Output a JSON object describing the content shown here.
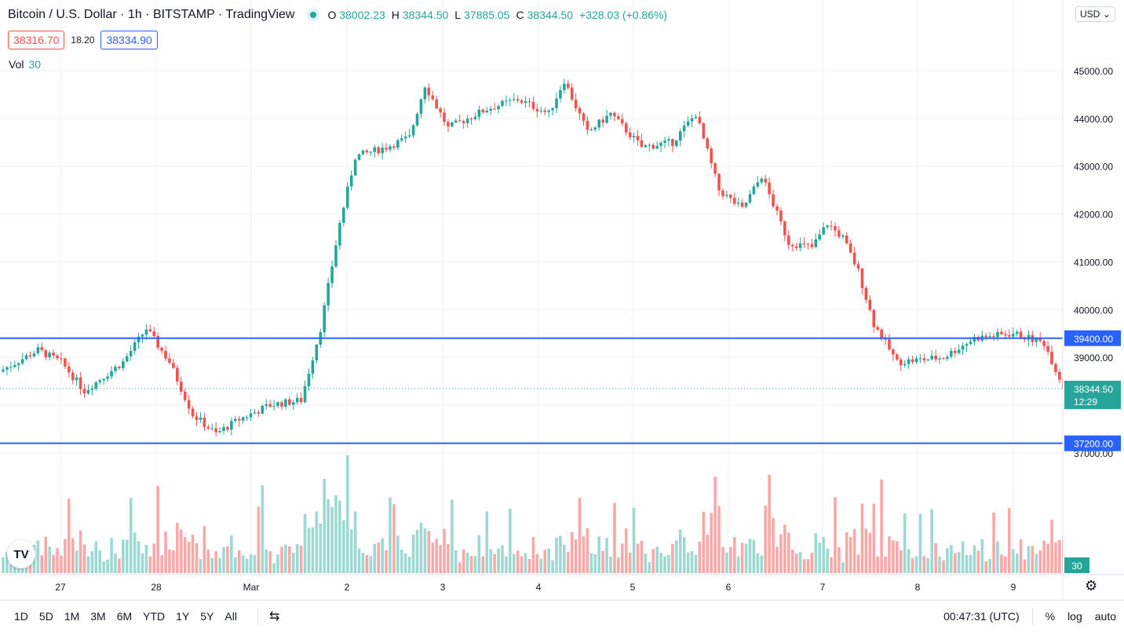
{
  "header": {
    "symbol_title": "Bitcoin / U.S. Dollar · 1h · BITSTAMP · TradingView",
    "ohlc": {
      "o_label": "O",
      "o": "38002.23",
      "h_label": "H",
      "h": "38344.50",
      "l_label": "L",
      "l": "37885.05",
      "c_label": "C",
      "c": "38344.50",
      "change": "+328.03 (+0.86%)"
    },
    "bid": "38316.70",
    "spread": "18.20",
    "ask": "38334.90",
    "vol_label": "Vol",
    "vol_value": "30",
    "currency": "USD"
  },
  "colors": {
    "up": "#26a69a",
    "down": "#ef5350",
    "up_vol": "#9ed8d2",
    "down_vol": "#f7a9a8",
    "hline": "#2962ff",
    "grid": "#f0f3fa"
  },
  "chart_data": {
    "type": "candlestick",
    "yaxis": {
      "ticks": [
        37000,
        38000,
        39000,
        40000,
        41000,
        42000,
        43000,
        44000,
        45000
      ],
      "tick_labels": [
        "37000.00",
        "38000.00",
        "39000.00",
        "40000.00",
        "41000.00",
        "42000.00",
        "43000.00",
        "44000.00",
        "45000.00"
      ]
    },
    "xaxis": {
      "tick_labels": [
        "27",
        "28",
        "Mar",
        "2",
        "3",
        "4",
        "5",
        "6",
        "7",
        "8",
        "9"
      ]
    },
    "horizontal_lines": [
      {
        "price": 39400,
        "label": "39400.00"
      },
      {
        "price": 37200,
        "label": "37200.00"
      }
    ],
    "last_price": {
      "price": 38344.5,
      "label": "38344.50",
      "countdown": "12:29"
    },
    "volume_last_label": "30",
    "anchors": [
      {
        "t": 0,
        "p": 38700
      },
      {
        "t": 10,
        "p": 39150
      },
      {
        "t": 16,
        "p": 38900
      },
      {
        "t": 22,
        "p": 38300
      },
      {
        "t": 32,
        "p": 38900
      },
      {
        "t": 38,
        "p": 39600
      },
      {
        "t": 44,
        "p": 38900
      },
      {
        "t": 50,
        "p": 37800
      },
      {
        "t": 56,
        "p": 37400
      },
      {
        "t": 62,
        "p": 37700
      },
      {
        "t": 70,
        "p": 38000
      },
      {
        "t": 78,
        "p": 38100
      },
      {
        "t": 83,
        "p": 39600
      },
      {
        "t": 88,
        "p": 41800
      },
      {
        "t": 92,
        "p": 43200
      },
      {
        "t": 100,
        "p": 43400
      },
      {
        "t": 106,
        "p": 43600
      },
      {
        "t": 110,
        "p": 44700
      },
      {
        "t": 116,
        "p": 43800
      },
      {
        "t": 126,
        "p": 44200
      },
      {
        "t": 134,
        "p": 44400
      },
      {
        "t": 142,
        "p": 44100
      },
      {
        "t": 146,
        "p": 44800
      },
      {
        "t": 152,
        "p": 43700
      },
      {
        "t": 158,
        "p": 44100
      },
      {
        "t": 166,
        "p": 43400
      },
      {
        "t": 174,
        "p": 43500
      },
      {
        "t": 180,
        "p": 44100
      },
      {
        "t": 186,
        "p": 42500
      },
      {
        "t": 192,
        "p": 42100
      },
      {
        "t": 197,
        "p": 42800
      },
      {
        "t": 204,
        "p": 41400
      },
      {
        "t": 210,
        "p": 41300
      },
      {
        "t": 214,
        "p": 41800
      },
      {
        "t": 218,
        "p": 41500
      },
      {
        "t": 222,
        "p": 40800
      },
      {
        "t": 226,
        "p": 39700
      },
      {
        "t": 232,
        "p": 38900
      },
      {
        "t": 244,
        "p": 39000
      },
      {
        "t": 252,
        "p": 39400
      },
      {
        "t": 262,
        "p": 39500
      },
      {
        "t": 270,
        "p": 39300
      },
      {
        "t": 276,
        "p": 38200
      },
      {
        "t": 282,
        "p": 38900
      },
      {
        "t": 290,
        "p": 39100
      },
      {
        "t": 298,
        "p": 38800
      },
      {
        "t": 302,
        "p": 37800
      },
      {
        "t": 310,
        "p": 38000
      },
      {
        "t": 316,
        "p": 39000
      },
      {
        "t": 322,
        "p": 38600
      },
      {
        "t": 326,
        "p": 37400
      },
      {
        "t": 330,
        "p": 38000
      },
      {
        "t": 333,
        "p": 38345
      }
    ]
  }
}
